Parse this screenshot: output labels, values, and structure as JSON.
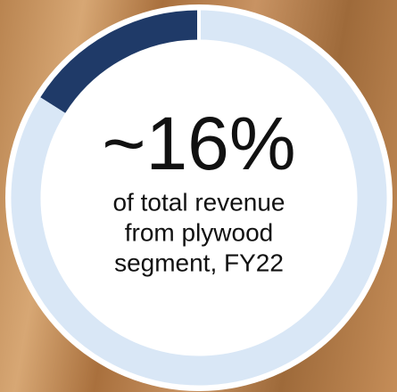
{
  "chart_data": {
    "type": "donut",
    "values": [
      16,
      84
    ],
    "value_labels": [
      "~16%",
      null
    ],
    "colors": [
      "#1f3a68",
      "#d9e7f6"
    ],
    "direction": "counterclockwise",
    "subtitle_lines": [
      "of total revenue",
      "from plywood",
      "segment, FY22"
    ]
  }
}
